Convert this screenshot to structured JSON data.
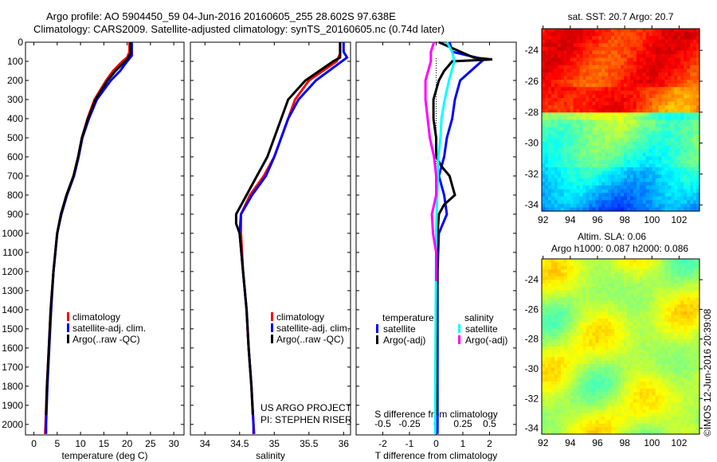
{
  "title_line1": "Argo profile: AO 5904450_59 04-Jun-2016 20160605_255 28.602S 97.638E",
  "title_line2": "Climatology: CARS2009. Satellite-adjusted climatology: synTS_20160605.nc (0.74d later)",
  "project": [
    "US ARGO PROJECT",
    "PI: STEPHEN RISER"
  ],
  "timestamp": "©IMOS 12-Jun-2016 20:39:08",
  "colors": {
    "climatology": "#ff0000",
    "satellite": "#0000ff",
    "argo": "#000000",
    "sal_sat": "#00ffff",
    "sal_argo": "#ff00ff"
  },
  "chart_data": [
    {
      "type": "line",
      "name": "temperature",
      "xlabel": "temperature (deg C)",
      "ylabel": "",
      "xlim": [
        -1.8,
        32.2
      ],
      "ylim": [
        0,
        2055
      ],
      "xticks": [
        0,
        5,
        10,
        15,
        20,
        25,
        30
      ],
      "yticks": [
        0,
        100,
        200,
        300,
        400,
        500,
        600,
        700,
        800,
        900,
        1000,
        1100,
        1200,
        1300,
        1400,
        1500,
        1600,
        1700,
        1800,
        1900,
        2000
      ],
      "legend": [
        "climatology",
        "satellite-adj. clim.",
        "Argo(..raw -QC)"
      ],
      "series": [
        {
          "name": "climatology",
          "color": "#ff0000",
          "depth": [
            0,
            50,
            80,
            100,
            150,
            200,
            300,
            400,
            500,
            600,
            700,
            800,
            900,
            1000,
            1200,
            1400,
            1600,
            1800,
            2000,
            2050
          ],
          "values": [
            20.5,
            20.5,
            20,
            19,
            17,
            15.5,
            13,
            11.5,
            10.3,
            9.5,
            8.5,
            7,
            5.8,
            5,
            4.2,
            3.6,
            3.2,
            2.8,
            2.5,
            2.4
          ]
        },
        {
          "name": "satellite-adj. clim.",
          "color": "#0000ff",
          "depth": [
            0,
            70,
            100,
            150,
            200,
            300,
            400,
            500,
            600,
            700,
            800,
            900,
            1000,
            1200,
            1400,
            1600,
            1800,
            2000,
            2050
          ],
          "values": [
            21,
            21,
            20,
            18.5,
            16.5,
            13.5,
            11.8,
            10.4,
            9.6,
            8.6,
            7.1,
            5.9,
            5,
            4.2,
            3.7,
            3.3,
            2.9,
            2.6,
            2.6
          ]
        },
        {
          "name": "Argo(..raw -QC)",
          "color": "#000000",
          "depth": [
            0,
            60,
            90,
            150,
            200,
            300,
            400,
            500,
            600,
            700,
            800,
            900,
            1000,
            1200,
            1400,
            1600,
            1800,
            1950
          ],
          "values": [
            20.7,
            20.7,
            20,
            17.5,
            15.8,
            13.2,
            11.6,
            10.3,
            9.5,
            8.5,
            7,
            5.8,
            5,
            4.2,
            3.6,
            3.2,
            2.8,
            2.6
          ]
        }
      ]
    },
    {
      "type": "line",
      "name": "salinity",
      "xlabel": "salinity",
      "ylabel": "",
      "xlim": [
        33.79,
        36.1
      ],
      "ylim": [
        0,
        2055
      ],
      "xticks": [
        34,
        34.5,
        35,
        35.5,
        36
      ],
      "legend": [
        "climatology",
        "satellite-adj. clim.",
        "Argo(..raw -QC)"
      ],
      "series": [
        {
          "name": "climatology",
          "color": "#ff0000",
          "depth": [
            0,
            60,
            100,
            150,
            200,
            300,
            400,
            500,
            600,
            700,
            800,
            900,
            1000,
            1200,
            1400,
            1600,
            1800,
            2000,
            2050
          ],
          "values": [
            35.95,
            35.95,
            35.9,
            35.7,
            35.5,
            35.3,
            35.2,
            35.1,
            35.0,
            34.85,
            34.65,
            34.52,
            34.52,
            34.55,
            34.6,
            34.63,
            34.67,
            34.7,
            34.71
          ]
        },
        {
          "name": "satellite-adj. clim.",
          "color": "#0000ff",
          "depth": [
            0,
            50,
            80,
            120,
            200,
            300,
            400,
            500,
            600,
            700,
            800,
            900,
            1000,
            1200,
            1400,
            1600,
            1800,
            2000,
            2050
          ],
          "values": [
            36,
            36,
            36.05,
            35.9,
            35.6,
            35.35,
            35.2,
            35.1,
            35.0,
            34.88,
            34.68,
            34.52,
            34.5,
            34.55,
            34.6,
            34.63,
            34.67,
            34.7,
            34.7
          ]
        },
        {
          "name": "Argo(..raw -QC)",
          "color": "#000000",
          "depth": [
            0,
            80,
            100,
            200,
            300,
            400,
            500,
            600,
            700,
            800,
            900,
            950,
            1000,
            1200,
            1400,
            1600,
            1800,
            1950
          ],
          "values": [
            35.95,
            35.95,
            35.85,
            35.45,
            35.2,
            35.1,
            35.0,
            34.9,
            34.75,
            34.6,
            34.45,
            34.45,
            34.5,
            34.55,
            34.6,
            34.63,
            34.67,
            34.69
          ]
        }
      ]
    },
    {
      "type": "line",
      "name": "difference",
      "xlabel": "T difference from climatology",
      "x2label": "S difference from climatology",
      "xlim": [
        -3,
        3
      ],
      "s_xlim": [
        -0.75,
        0.75
      ],
      "ylim": [
        0,
        2055
      ],
      "xticks": [
        -2,
        -1,
        0,
        1,
        2
      ],
      "s_xticks": [
        -0.5,
        -0.25,
        0,
        0.25,
        0.5
      ],
      "legend_titles": [
        "temperature",
        "salinity"
      ],
      "legend": [
        "satellite",
        "Argo(-adj)",
        "satellite",
        "Argo(-adj)"
      ],
      "series": [
        {
          "name": "T satellite",
          "units": "T",
          "color": "#0000ff",
          "depth": [
            0,
            50,
            90,
            100,
            200,
            300,
            400,
            500,
            600,
            700,
            800,
            900,
            1000,
            1200,
            2000,
            2050
          ],
          "values": [
            0.5,
            0.6,
            1.8,
            1.7,
            0.9,
            0.7,
            0.6,
            0.4,
            0.3,
            0.1,
            0.3,
            0.4,
            0.1,
            0.05,
            0.05,
            0.05
          ]
        },
        {
          "name": "T Argo(-adj)",
          "units": "T",
          "color": "#000000",
          "depth": [
            0,
            80,
            90,
            100,
            150,
            200,
            300,
            400,
            500,
            600,
            650,
            700,
            750,
            800,
            850,
            900,
            1000,
            1950
          ],
          "values": [
            0.1,
            1.4,
            2.1,
            0.6,
            0.3,
            0.1,
            -0.1,
            -0.1,
            0,
            0,
            0.2,
            0.5,
            0.6,
            0.7,
            0.3,
            0.1,
            0.05,
            0
          ]
        },
        {
          "name": "S satellite",
          "units": "S",
          "color": "#00ffff",
          "depth": [
            0,
            50,
            100,
            200,
            300,
            400,
            500,
            600,
            800,
            1000,
            2000,
            2050
          ],
          "values": [
            0.1,
            0.15,
            0.17,
            0.12,
            0.08,
            0.05,
            0.04,
            0.02,
            0.01,
            0,
            -0.01,
            -0.01
          ]
        },
        {
          "name": "S Argo(-adj)",
          "units": "S",
          "color": "#ff00ff",
          "depth": [
            0,
            50,
            100,
            200,
            300,
            400,
            500,
            600,
            700,
            800,
            850,
            900,
            1000,
            1100,
            1250
          ],
          "values": [
            -0.02,
            -0.05,
            -0.05,
            -0.1,
            -0.1,
            -0.08,
            -0.06,
            -0.02,
            0,
            0,
            -0.02,
            -0.04,
            -0.03,
            0,
            0
          ]
        }
      ]
    },
    {
      "type": "heatmap",
      "name": "sst-map",
      "title": "sat. SST: 20.7 Argo: 20.7",
      "xlim": [
        91.9,
        103.5
      ],
      "ylim": [
        -34.4,
        -22.6
      ],
      "xticks": [
        92,
        94,
        96,
        98,
        100,
        102
      ],
      "yticks": [
        -24,
        -26,
        -28,
        -30,
        -32,
        -34
      ]
    },
    {
      "type": "heatmap",
      "name": "sla-map",
      "title": [
        "Altim. SLA: 0.06",
        "Argo h1000: 0.087 h2000: 0.086"
      ],
      "xlim": [
        91.9,
        103.5
      ],
      "ylim": [
        -34.4,
        -22.6
      ],
      "xticks": [
        92,
        94,
        96,
        98,
        100,
        102
      ],
      "yticks": [
        -24,
        -26,
        -28,
        -30,
        -32,
        -34
      ]
    }
  ]
}
